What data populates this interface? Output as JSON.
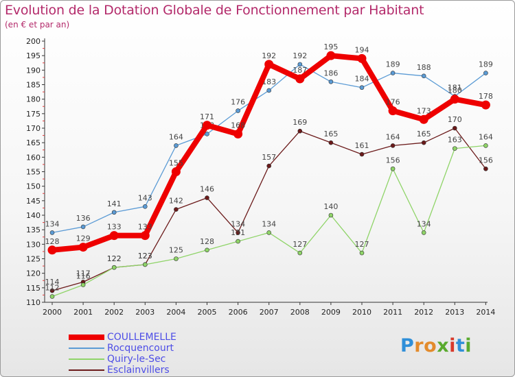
{
  "title": "Evolution de la Dotation Globale de Fonctionnement par Habitant",
  "subtitle": "(en € et par an)",
  "brand": {
    "letters": [
      "P",
      "r",
      "o",
      "x",
      "i",
      "t",
      "i"
    ],
    "colors": [
      "#2f8fd8",
      "#e38b2c",
      "#e38b2c",
      "#5aaa2e",
      "#d8392b",
      "#2f8fd8",
      "#5aaa2e"
    ]
  },
  "chart_data": {
    "type": "line",
    "x": [
      "2000",
      "2001",
      "2002",
      "2003",
      "2004",
      "2005",
      "2006",
      "2007",
      "2008",
      "2009",
      "2010",
      "2011",
      "2012",
      "2013",
      "2014"
    ],
    "ylim": [
      110,
      200
    ],
    "yticks": [
      110,
      115,
      120,
      125,
      130,
      135,
      140,
      145,
      150,
      155,
      160,
      165,
      170,
      175,
      180,
      185,
      190,
      195,
      200
    ],
    "grid": false,
    "legend_position": "bottom-left",
    "series": [
      {
        "name": "Esclainvillers",
        "color": "#6b1a1a",
        "values": [
          114,
          117,
          122,
          123,
          142,
          146,
          134,
          157,
          169,
          165,
          161,
          164,
          165,
          170,
          156
        ]
      },
      {
        "name": "Quiry-le-Sec",
        "color": "#8fd468",
        "values": [
          112,
          116,
          122,
          123,
          125,
          128,
          131,
          134,
          127,
          140,
          127,
          156,
          134,
          163,
          164
        ]
      },
      {
        "name": "Rocquencourt",
        "color": "#5b9bd5",
        "values": [
          134,
          136,
          141,
          143,
          164,
          168,
          176,
          183,
          192,
          186,
          184,
          189,
          188,
          181,
          189
        ]
      },
      {
        "name": "COULLEMELLE",
        "color": "#ee0000",
        "values": [
          128,
          129,
          133,
          133,
          155,
          171,
          168,
          192,
          187,
          195,
          194,
          176,
          173,
          180,
          178
        ]
      }
    ],
    "legend_order": [
      "COULLEMELLE",
      "Rocquencourt",
      "Quiry-le-Sec",
      "Esclainvillers"
    ]
  }
}
